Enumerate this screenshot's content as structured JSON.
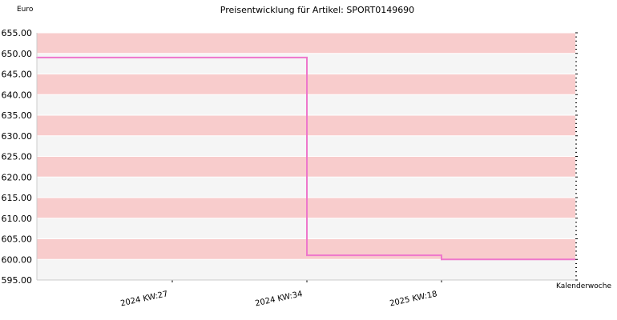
{
  "chart_data": {
    "type": "line",
    "title": "Preisentwicklung für Artikel: SPORT0149690",
    "ylabel": "Euro",
    "xlabel": "Kalenderwoche",
    "ylim": [
      595,
      655
    ],
    "yticks": [
      "595.00",
      "600.00",
      "605.00",
      "610.00",
      "615.00",
      "620.00",
      "625.00",
      "630.00",
      "635.00",
      "640.00",
      "645.00",
      "650.00",
      "655.00"
    ],
    "categories": [
      "2024 KW:27",
      "2024 KW:34",
      "2025 KW:18"
    ],
    "series": [
      {
        "values": [
          649.0,
          601.0,
          600.0
        ]
      }
    ],
    "step": true,
    "grid": true,
    "colors": {
      "line": "#ee77cc",
      "band_pink": "#f8cccc",
      "band_light": "#f5f5f5",
      "grid": "#ffffff",
      "axis": "#000000"
    }
  }
}
